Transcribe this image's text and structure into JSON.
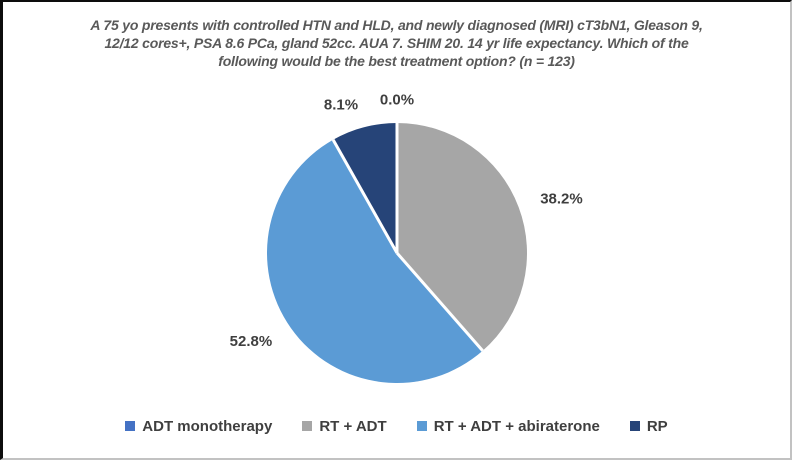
{
  "chart_data": {
    "type": "pie",
    "title": "A 75 yo presents with controlled HTN and HLD, and newly diagnosed (MRI) cT3bN1, Gleason 9, 12/12 cores+, PSA 8.6 PCa, gland 52cc. AUA 7. SHIM 20. 14 yr life expectancy. Which of the following would be the best treatment option? (n = 123)",
    "title_lines": [
      "A 75 yo presents with controlled HTN and HLD, and newly diagnosed (MRI) cT3bN1, Gleason 9,",
      "12/12 cores+, PSA 8.6 PCa, gland 52cc. AUA 7. SHIM 20. 14 yr life expectancy. Which of the",
      "following would be the best treatment option? (n = 123)"
    ],
    "categories": [
      "ADT monotherapy",
      "RT + ADT",
      "RT + ADT + abiraterone",
      "RP"
    ],
    "values": [
      0.0,
      38.2,
      52.8,
      8.1
    ],
    "value_labels": [
      "0.0%",
      "38.2%",
      "52.8%",
      "8.1%"
    ],
    "colors": [
      "#4472C4",
      "#A6A6A6",
      "#5B9BD5",
      "#264478"
    ],
    "start_angle_deg": 0,
    "direction": "clockwise",
    "legend_position": "bottom",
    "slice_border_color": "#FFFFFF",
    "title_color": "#595959",
    "label_color": "#3F3F3F"
  }
}
